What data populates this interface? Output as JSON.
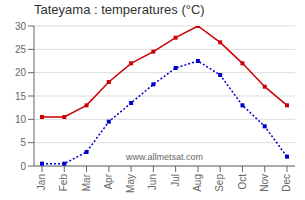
{
  "chart_data": {
    "type": "line",
    "title": "Tateyama : temperatures (°C)",
    "categories": [
      "Jan",
      "Feb",
      "Mar",
      "Apr",
      "May",
      "Jun",
      "Jul",
      "Aug",
      "Sep",
      "Oct",
      "Nov",
      "Dec"
    ],
    "series": [
      {
        "color": "#cc0000",
        "values": [
          10.5,
          10.5,
          13.0,
          18.0,
          22.0,
          24.5,
          27.5,
          30.0,
          26.5,
          22.0,
          17.0,
          13.0
        ],
        "line_style": "solid",
        "marker": "square"
      },
      {
        "color": "#0000cc",
        "values": [
          0.5,
          0.5,
          3.0,
          9.5,
          13.5,
          17.5,
          21.0,
          22.5,
          19.5,
          13.0,
          8.5,
          2.0
        ],
        "line_style": "dotted",
        "marker": "square"
      }
    ],
    "ylim": [
      0,
      30
    ],
    "yticks": [
      0,
      5,
      10,
      15,
      20,
      25,
      30
    ],
    "grid": "y",
    "annotation": "www.allmetsat.com"
  }
}
